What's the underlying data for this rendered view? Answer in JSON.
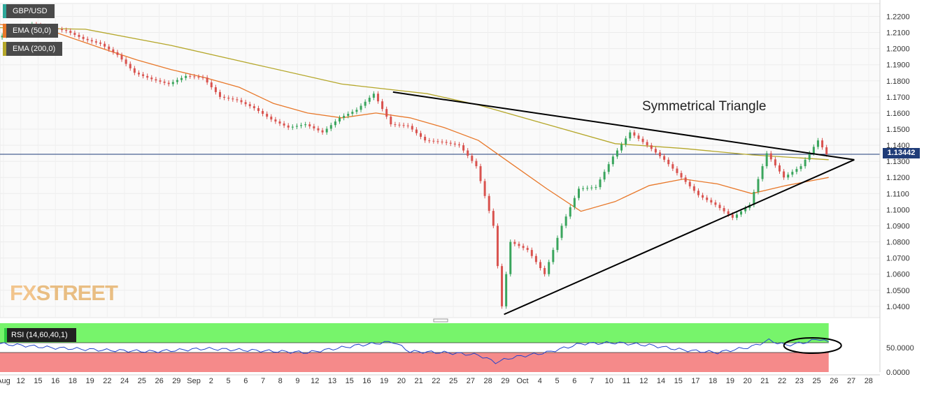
{
  "chart_data": [
    {
      "type": "candlestick",
      "symbol": "GBP/USD",
      "indicators": [
        {
          "name": "EMA (50,0)",
          "color": "#e8782a"
        },
        {
          "name": "EMA (200,0)",
          "color": "#b5a72a"
        }
      ],
      "annotation": "Symmetrical Triangle",
      "current_price_label": "1.13442",
      "current_price": 1.13442,
      "ylim": [
        1.033,
        1.228
      ],
      "y_ticks": [
        "1.2200",
        "1.2100",
        "1.2000",
        "1.1900",
        "1.1800",
        "1.1700",
        "1.1600",
        "1.1500",
        "1.1400",
        "1.1300",
        "1.1200",
        "1.1100",
        "1.1000",
        "1.0900",
        "1.0800",
        "1.0700",
        "1.0600",
        "1.0500",
        "1.0400"
      ],
      "x_ticks": [
        "Aug",
        "12",
        "15",
        "16",
        "18",
        "19",
        "22",
        "24",
        "25",
        "26",
        "29",
        "Sep",
        "2",
        "5",
        "6",
        "7",
        "8",
        "9",
        "12",
        "13",
        "15",
        "16",
        "19",
        "20",
        "21",
        "22",
        "25",
        "27",
        "28",
        "29",
        "Oct",
        "4",
        "5",
        "6",
        "7",
        "10",
        "11",
        "12",
        "14",
        "15",
        "17",
        "18",
        "19",
        "20",
        "21",
        "22",
        "23",
        "25",
        "26",
        "27",
        "28"
      ],
      "grid": true,
      "close_path": [
        {
          "x": 0,
          "y": 1.207
        },
        {
          "x": 2,
          "y": 1.215
        },
        {
          "x": 4,
          "y": 1.211
        },
        {
          "x": 5,
          "y": 1.206
        },
        {
          "x": 6,
          "y": 1.203
        },
        {
          "x": 7,
          "y": 1.196
        },
        {
          "x": 8,
          "y": 1.185
        },
        {
          "x": 9,
          "y": 1.181
        },
        {
          "x": 10,
          "y": 1.178
        },
        {
          "x": 11,
          "y": 1.183
        },
        {
          "x": 12,
          "y": 1.182
        },
        {
          "x": 13,
          "y": 1.17
        },
        {
          "x": 14,
          "y": 1.168
        },
        {
          "x": 15,
          "y": 1.163
        },
        {
          "x": 16,
          "y": 1.156
        },
        {
          "x": 17,
          "y": 1.151
        },
        {
          "x": 18,
          "y": 1.153
        },
        {
          "x": 19,
          "y": 1.148
        },
        {
          "x": 20,
          "y": 1.157
        },
        {
          "x": 21,
          "y": 1.162
        },
        {
          "x": 22,
          "y": 1.172
        },
        {
          "x": 23,
          "y": 1.153
        },
        {
          "x": 24,
          "y": 1.152
        },
        {
          "x": 25,
          "y": 1.143
        },
        {
          "x": 26,
          "y": 1.142
        },
        {
          "x": 27,
          "y": 1.14
        },
        {
          "x": 28,
          "y": 1.127
        },
        {
          "x": 29,
          "y": 1.09
        },
        {
          "x": 29.5,
          "y": 1.04
        },
        {
          "x": 30,
          "y": 1.08
        },
        {
          "x": 31,
          "y": 1.075
        },
        {
          "x": 32,
          "y": 1.06
        },
        {
          "x": 33,
          "y": 1.09
        },
        {
          "x": 34,
          "y": 1.113
        },
        {
          "x": 35,
          "y": 1.114
        },
        {
          "x": 36,
          "y": 1.133
        },
        {
          "x": 37,
          "y": 1.148
        },
        {
          "x": 38,
          "y": 1.14
        },
        {
          "x": 39,
          "y": 1.131
        },
        {
          "x": 40,
          "y": 1.12
        },
        {
          "x": 41,
          "y": 1.109
        },
        {
          "x": 42,
          "y": 1.103
        },
        {
          "x": 43,
          "y": 1.095
        },
        {
          "x": 44,
          "y": 1.103
        },
        {
          "x": 45,
          "y": 1.135
        },
        {
          "x": 46,
          "y": 1.12
        },
        {
          "x": 47,
          "y": 1.127
        },
        {
          "x": 48,
          "y": 1.143
        },
        {
          "x": 48.5,
          "y": 1.13442
        }
      ],
      "ema50": [
        {
          "x": 0,
          "y": 1.215
        },
        {
          "x": 3,
          "y": 1.211
        },
        {
          "x": 6,
          "y": 1.2
        },
        {
          "x": 8,
          "y": 1.193
        },
        {
          "x": 10,
          "y": 1.187
        },
        {
          "x": 12,
          "y": 1.182
        },
        {
          "x": 14,
          "y": 1.176
        },
        {
          "x": 16,
          "y": 1.166
        },
        {
          "x": 18,
          "y": 1.16
        },
        {
          "x": 20,
          "y": 1.157
        },
        {
          "x": 22,
          "y": 1.16
        },
        {
          "x": 24,
          "y": 1.157
        },
        {
          "x": 26,
          "y": 1.151
        },
        {
          "x": 28,
          "y": 1.143
        },
        {
          "x": 30,
          "y": 1.128
        },
        {
          "x": 32,
          "y": 1.113
        },
        {
          "x": 34,
          "y": 1.099
        },
        {
          "x": 36,
          "y": 1.105
        },
        {
          "x": 38,
          "y": 1.115
        },
        {
          "x": 40,
          "y": 1.119
        },
        {
          "x": 42,
          "y": 1.116
        },
        {
          "x": 44,
          "y": 1.11
        },
        {
          "x": 46,
          "y": 1.115
        },
        {
          "x": 48.5,
          "y": 1.12
        }
      ],
      "ema200": [
        {
          "x": 0,
          "y": 1.213
        },
        {
          "x": 5,
          "y": 1.212
        },
        {
          "x": 10,
          "y": 1.202
        },
        {
          "x": 15,
          "y": 1.19
        },
        {
          "x": 20,
          "y": 1.178
        },
        {
          "x": 25,
          "y": 1.172
        },
        {
          "x": 28,
          "y": 1.165
        },
        {
          "x": 32,
          "y": 1.153
        },
        {
          "x": 36,
          "y": 1.141
        },
        {
          "x": 40,
          "y": 1.138
        },
        {
          "x": 44,
          "y": 1.134
        },
        {
          "x": 48.5,
          "y": 1.131
        }
      ],
      "triangle": {
        "upper": [
          {
            "x": 23,
            "y": 1.173
          },
          {
            "x": 50,
            "y": 1.131
          }
        ],
        "lower": [
          {
            "x": 29.5,
            "y": 1.035
          },
          {
            "x": 50,
            "y": 1.131
          }
        ]
      }
    },
    {
      "type": "line",
      "indicator": "RSI (14,60,40,1)",
      "ylim": [
        0,
        100
      ],
      "y_ticks": [
        "50.0000",
        "0.0000"
      ],
      "levels": {
        "upper": 60,
        "lower": 40
      },
      "highlight_ellipse": true,
      "values": [
        {
          "x": 0,
          "y": 58
        },
        {
          "x": 3,
          "y": 50
        },
        {
          "x": 6,
          "y": 45
        },
        {
          "x": 9,
          "y": 42
        },
        {
          "x": 12,
          "y": 48
        },
        {
          "x": 15,
          "y": 44
        },
        {
          "x": 18,
          "y": 40
        },
        {
          "x": 21,
          "y": 55
        },
        {
          "x": 23,
          "y": 62
        },
        {
          "x": 24,
          "y": 42
        },
        {
          "x": 26,
          "y": 40
        },
        {
          "x": 28,
          "y": 35
        },
        {
          "x": 29,
          "y": 20
        },
        {
          "x": 30,
          "y": 30
        },
        {
          "x": 32,
          "y": 40
        },
        {
          "x": 34,
          "y": 58
        },
        {
          "x": 36,
          "y": 60
        },
        {
          "x": 38,
          "y": 55
        },
        {
          "x": 40,
          "y": 45
        },
        {
          "x": 42,
          "y": 40
        },
        {
          "x": 44,
          "y": 52
        },
        {
          "x": 45,
          "y": 65
        },
        {
          "x": 46,
          "y": 55
        },
        {
          "x": 47,
          "y": 60
        },
        {
          "x": 48,
          "y": 68
        },
        {
          "x": 48.5,
          "y": 62
        }
      ]
    }
  ]
}
